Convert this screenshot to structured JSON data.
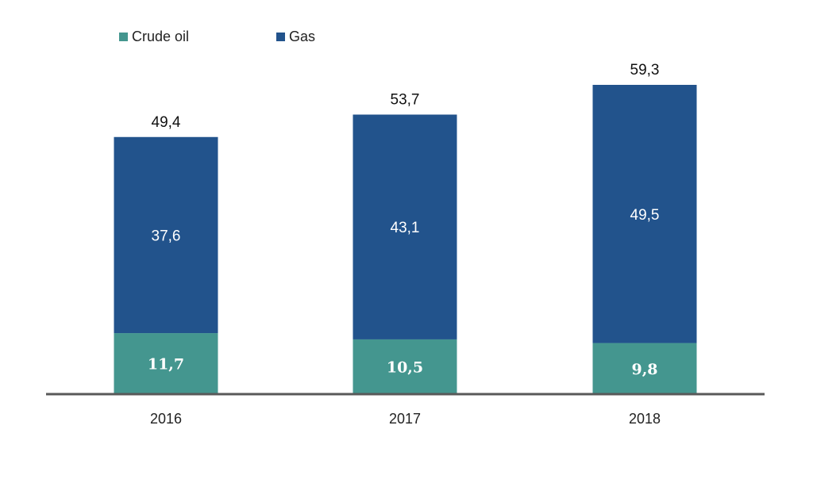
{
  "chart_data": {
    "type": "bar",
    "stacked": true,
    "categories": [
      "2016",
      "2017",
      "2018"
    ],
    "series": [
      {
        "name": "Crude oil",
        "color": "#44968F",
        "values": [
          11.7,
          10.5,
          9.8
        ],
        "labels": [
          "11,7",
          "10,5",
          "9,8"
        ]
      },
      {
        "name": "Gas",
        "color": "#22538C",
        "values": [
          37.6,
          43.1,
          49.5
        ],
        "labels": [
          "37,6",
          "43,1",
          "49,5"
        ]
      }
    ],
    "totals": [
      49.4,
      53.7,
      59.3
    ],
    "total_labels": [
      "49,4",
      "53,7",
      "59,3"
    ],
    "title": "",
    "xlabel": "",
    "ylabel": "",
    "ylim": [
      0,
      59.3
    ],
    "grid": false,
    "legend_position": "top-left",
    "axis_color": "#595959"
  }
}
